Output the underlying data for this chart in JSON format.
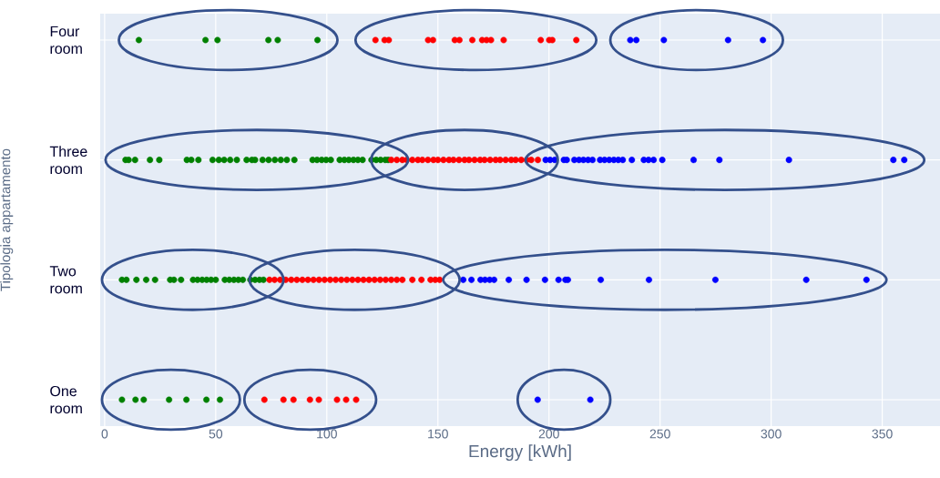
{
  "chart_data": {
    "type": "scatter",
    "orientation": "horizontal",
    "xlabel": "Energy [kWh]",
    "ylabel": "Tipologia appartamento",
    "categories": [
      "Four room",
      "Three room",
      "Two room",
      "One room"
    ],
    "xlim": [
      -2,
      376
    ],
    "xticks": [
      0,
      50,
      100,
      150,
      200,
      250,
      300,
      350
    ],
    "grid": true,
    "marker": "circle",
    "series": [
      {
        "color": "#008000",
        "values": [
          15.4,
          45.4,
          50.8,
          73.7,
          77.9,
          95.8,
          9.4,
          10.8,
          13.7,
          20.4,
          24.6,
          37,
          39,
          42.2,
          48.6,
          51.4,
          53.8,
          56.5,
          59.5,
          63.9,
          66.3,
          67.7,
          71.1,
          73.8,
          76.6,
          79.3,
          82,
          85.4,
          93.6,
          95.6,
          97.7,
          99.7,
          101.8,
          105.8,
          107.9,
          109.9,
          112,
          114,
          116.1,
          120.1,
          122.2,
          124.2,
          126.3,
          127.6,
          7.8,
          9.8,
          14.3,
          18.7,
          22.7,
          29.5,
          31.2,
          34.4,
          39.8,
          41.8,
          43.9,
          45.9,
          47.9,
          50,
          54.1,
          56.1,
          58.2,
          60.2,
          62.2,
          65.6,
          67.7,
          69.7,
          71.5,
          7.8,
          13.9,
          17.6,
          29,
          36.8,
          45.8,
          51.9
        ],
        "x": [
          "Four room",
          "Four room",
          "Four room",
          "Four room",
          "Four room",
          "Four room",
          "Three room",
          "Three room",
          "Three room",
          "Three room",
          "Three room",
          "Three room",
          "Three room",
          "Three room",
          "Three room",
          "Three room",
          "Three room",
          "Three room",
          "Three room",
          "Three room",
          "Three room",
          "Three room",
          "Three room",
          "Three room",
          "Three room",
          "Three room",
          "Three room",
          "Three room",
          "Three room",
          "Three room",
          "Three room",
          "Three room",
          "Three room",
          "Three room",
          "Three room",
          "Three room",
          "Three room",
          "Three room",
          "Three room",
          "Three room",
          "Three room",
          "Three room",
          "Three room",
          "Three room",
          "Two room",
          "Two room",
          "Two room",
          "Two room",
          "Two room",
          "Two room",
          "Two room",
          "Two room",
          "Two room",
          "Two room",
          "Two room",
          "Two room",
          "Two room",
          "Two room",
          "Two room",
          "Two room",
          "Two room",
          "Two room",
          "Two room",
          "Two room",
          "Two room",
          "Two room",
          "Two room",
          "One room",
          "One room",
          "One room",
          "One room",
          "One room",
          "One room",
          "One room"
        ]
      },
      {
        "color": "#ff0000",
        "values": [
          121.9,
          126,
          127.9,
          145.6,
          147.8,
          157.6,
          159.7,
          165.5,
          169.9,
          171.9,
          173.9,
          179.6,
          196.3,
          200.1,
          201.5,
          212.3,
          129,
          131.5,
          134,
          136,
          138.5,
          141,
          143,
          145.5,
          148,
          150,
          152.5,
          155,
          157,
          159.5,
          162,
          164,
          166.5,
          169,
          171,
          173.5,
          176,
          178,
          180.5,
          183,
          185,
          187.5,
          190,
          192,
          195,
          74.2,
          76.5,
          79,
          81.5,
          84,
          86.5,
          89,
          91.5,
          94,
          96.5,
          99,
          101.5,
          104,
          106.5,
          109,
          111.5,
          114,
          116.5,
          119,
          121.5,
          124,
          126.5,
          129,
          131.5,
          134,
          138.5,
          142.6,
          146.7,
          148.8,
          150.8,
          71.9,
          80.5,
          85,
          92.4,
          96.4,
          104.6,
          108.7,
          113.2
        ],
        "x": [
          "Four room",
          "Four room",
          "Four room",
          "Four room",
          "Four room",
          "Four room",
          "Four room",
          "Four room",
          "Four room",
          "Four room",
          "Four room",
          "Four room",
          "Four room",
          "Four room",
          "Four room",
          "Four room",
          "Three room",
          "Three room",
          "Three room",
          "Three room",
          "Three room",
          "Three room",
          "Three room",
          "Three room",
          "Three room",
          "Three room",
          "Three room",
          "Three room",
          "Three room",
          "Three room",
          "Three room",
          "Three room",
          "Three room",
          "Three room",
          "Three room",
          "Three room",
          "Three room",
          "Three room",
          "Three room",
          "Three room",
          "Three room",
          "Three room",
          "Three room",
          "Three room",
          "Three room",
          "Two room",
          "Two room",
          "Two room",
          "Two room",
          "Two room",
          "Two room",
          "Two room",
          "Two room",
          "Two room",
          "Two room",
          "Two room",
          "Two room",
          "Two room",
          "Two room",
          "Two room",
          "Two room",
          "Two room",
          "Two room",
          "Two room",
          "Two room",
          "Two room",
          "Two room",
          "Two room",
          "Two room",
          "Two room",
          "Two room",
          "Two room",
          "Two room",
          "Two room",
          "Two room",
          "One room",
          "One room",
          "One room",
          "One room",
          "One room",
          "One room",
          "One room",
          "One room"
        ]
      },
      {
        "color": "#0000ff",
        "values": [
          236.6,
          239.3,
          251.7,
          280.6,
          296.3,
          198.5,
          200.5,
          202.6,
          null,
          206.7,
          208,
          211.4,
          213.5,
          215.5,
          217.6,
          219.6,
          223,
          225,
          227.1,
          229.2,
          231.2,
          233.2,
          237.3,
          242.7,
          244.8,
          247.1,
          251,
          265.1,
          276.7,
          308,
          355,
          359.9,
          161.4,
          165.1,
          169.2,
          171.2,
          173.3,
          175.3,
          181.9,
          189.9,
          198.2,
          204.3,
          207.4,
          208.5,
          223.3,
          245,
          274.9,
          315.8,
          342.9,
          194.9,
          218.6
        ],
        "x": [
          "Four room",
          "Four room",
          "Four room",
          "Four room",
          "Four room",
          "Three room",
          "Three room",
          "Three room",
          "Three room",
          "Three room",
          "Three room",
          "Three room",
          "Three room",
          "Three room",
          "Three room",
          "Three room",
          "Three room",
          "Three room",
          "Three room",
          "Three room",
          "Three room",
          "Three room",
          "Three room",
          "Three room",
          "Three room",
          "Three room",
          "Three room",
          "Three room",
          "Three room",
          "Three room",
          "Three room",
          "Three room",
          "Two room",
          "Two room",
          "Two room",
          "Two room",
          "Two room",
          "Two room",
          "Two room",
          "Two room",
          "Two room",
          "Two room",
          "Two room",
          "Two room",
          "Two room",
          "Two room",
          "Two room",
          "Two room",
          "Two room",
          "One room",
          "One room"
        ]
      }
    ]
  }
}
